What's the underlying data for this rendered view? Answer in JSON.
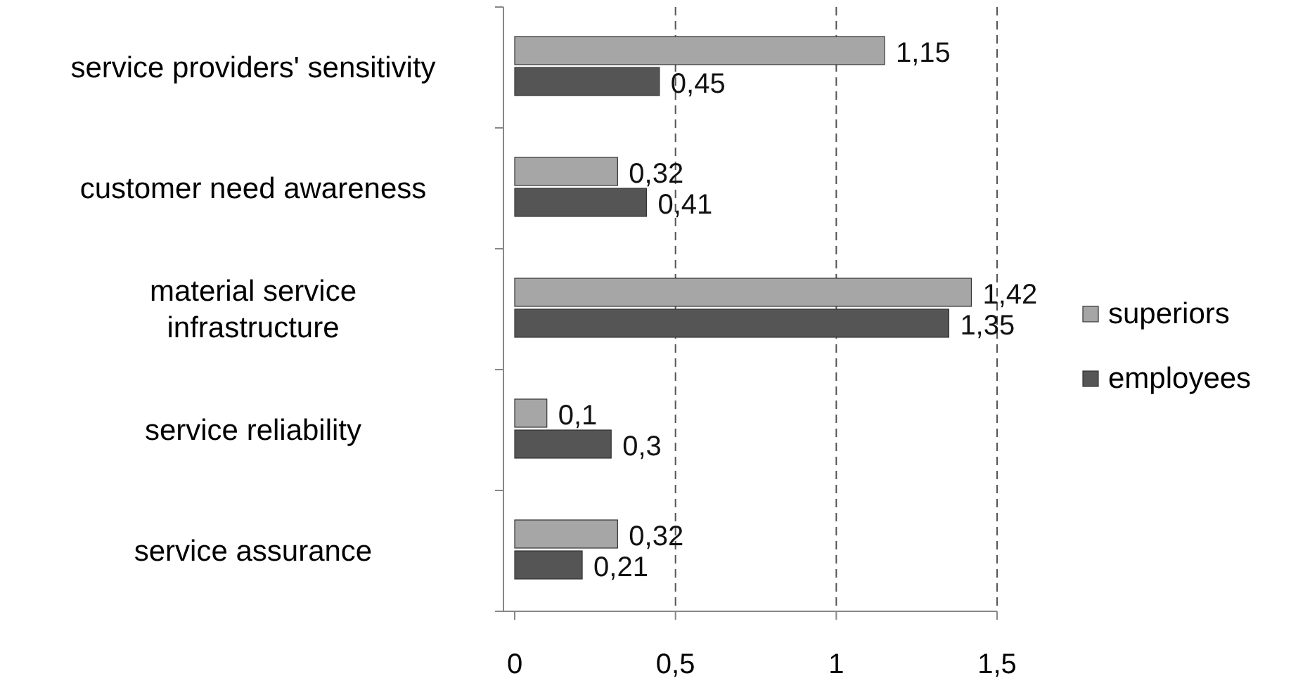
{
  "chart_data": {
    "type": "bar",
    "orientation": "horizontal",
    "categories": [
      "service providers' sensitivity",
      "customer need awareness",
      "material service\ninfrastructure",
      "service reliability",
      "service assurance"
    ],
    "series": [
      {
        "name": "superiors",
        "color": "#a6a6a6",
        "values": [
          1.15,
          0.32,
          1.42,
          0.1,
          0.32
        ],
        "value_labels": [
          "1,15",
          "0,32",
          "1,42",
          "0,1",
          "0,32"
        ]
      },
      {
        "name": "employees",
        "color": "#555555",
        "values": [
          0.45,
          0.41,
          1.35,
          0.3,
          0.21
        ],
        "value_labels": [
          "0,45",
          "0,41",
          "1,35",
          "0,3",
          "0,21"
        ]
      }
    ],
    "xlim": [
      0,
      1.5
    ],
    "xticks": [
      0,
      {
        "value": 0.5,
        "label": "0,5"
      },
      1,
      {
        "value": 1.5,
        "label": "1,5"
      }
    ],
    "grid": "x",
    "legend": "right"
  }
}
